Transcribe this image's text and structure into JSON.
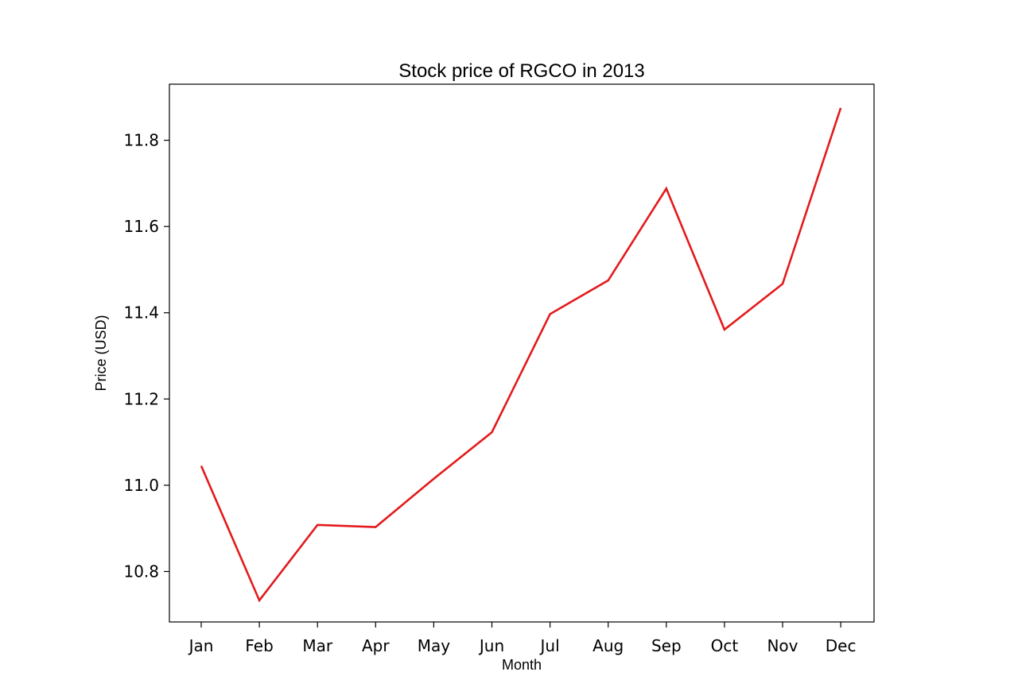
{
  "chart_data": {
    "type": "line",
    "title": "Stock price of RGCO in 2013",
    "xlabel": "Month",
    "ylabel": "Price (USD)",
    "categories": [
      "Jan",
      "Feb",
      "Mar",
      "Apr",
      "May",
      "Jun",
      "Jul",
      "Aug",
      "Sep",
      "Oct",
      "Nov",
      "Dec"
    ],
    "series": [
      {
        "color": "#e31a1c",
        "values": [
          11.045,
          10.733,
          10.908,
          10.903,
          11.015,
          11.123,
          11.397,
          11.475,
          11.688,
          11.361,
          11.467,
          11.875
        ]
      }
    ],
    "yticks": [
      "10.8",
      "11.0",
      "11.2",
      "11.4",
      "11.6",
      "11.8"
    ],
    "ylim": [
      10.683,
      11.93
    ],
    "grid": false,
    "legend": "none"
  }
}
